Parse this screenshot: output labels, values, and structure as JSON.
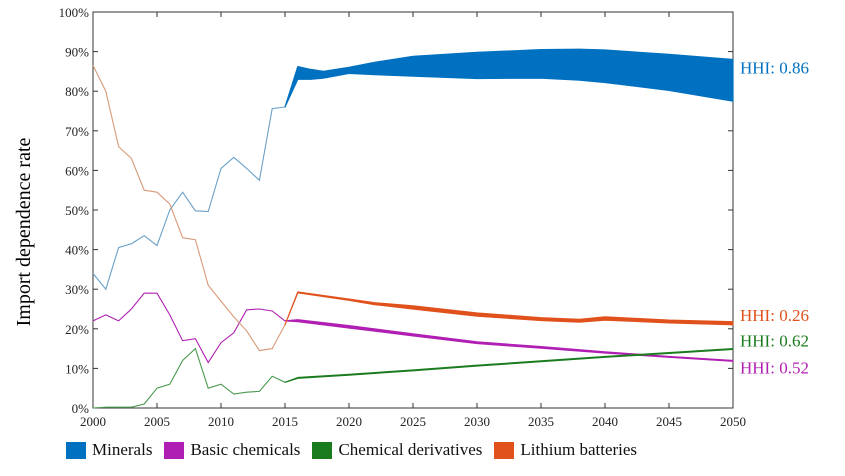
{
  "chart_data": {
    "type": "line",
    "ylabel": "Import dependence rate",
    "xlabel": "",
    "xlim": [
      2000,
      2050
    ],
    "ylim": [
      0,
      100
    ],
    "x_ticks": [
      2000,
      2005,
      2010,
      2015,
      2020,
      2025,
      2030,
      2035,
      2040,
      2045,
      2050
    ],
    "y_ticks": [
      "0%",
      "10%",
      "20%",
      "30%",
      "40%",
      "50%",
      "60%",
      "70%",
      "80%",
      "90%",
      "100%"
    ],
    "legend_position": "bottom",
    "series": [
      {
        "name": "Minerals",
        "color": "#0070c0",
        "hhi_label": "HHI: 0.86",
        "historical": {
          "x": [
            2000,
            2001,
            2002,
            2003,
            2004,
            2005,
            2006,
            2007,
            2008,
            2009,
            2010,
            2011,
            2012,
            2013,
            2014,
            2015
          ],
          "y": [
            34,
            30,
            40.5,
            41.5,
            43.5,
            41,
            50,
            54.5,
            49.8,
            49.6,
            60.5,
            63.3,
            60.5,
            57.5,
            75.6,
            76
          ]
        },
        "projection": {
          "x": [
            2015,
            2016,
            2017,
            2018,
            2020,
            2022,
            2025,
            2030,
            2035,
            2038,
            2040,
            2045,
            2050
          ],
          "upper": [
            76,
            86.2,
            85.5,
            85,
            86,
            87.3,
            88.8,
            89.8,
            90.5,
            90.6,
            90.4,
            89.3,
            88
          ],
          "lower": [
            76,
            83,
            83,
            83.3,
            84.5,
            84.2,
            83.8,
            83.2,
            83.3,
            82.8,
            82.2,
            80.2,
            77.5
          ]
        }
      },
      {
        "name": "Basic chemicals",
        "color": "#b01fb3",
        "hhi_label": "HHI: 0.52",
        "historical": {
          "x": [
            2000,
            2001,
            2002,
            2003,
            2004,
            2005,
            2006,
            2007,
            2008,
            2009,
            2010,
            2011,
            2012,
            2013,
            2014,
            2015
          ],
          "y": [
            22,
            23.5,
            22,
            25,
            29,
            29,
            23.5,
            17,
            17.5,
            11.5,
            16.5,
            19,
            24.8,
            25,
            24.5,
            22
          ]
        },
        "projection": {
          "x": [
            2015,
            2016,
            2020,
            2025,
            2030,
            2035,
            2040,
            2045,
            2050
          ],
          "upper": [
            22,
            22.3,
            20.8,
            18.7,
            16.7,
            15.5,
            14.2,
            13,
            12
          ],
          "lower": [
            22,
            21.8,
            20.2,
            18.2,
            16.3,
            15.1,
            13.9,
            12.8,
            11.8
          ]
        }
      },
      {
        "name": "Chemical derivatives",
        "color": "#1b7c1f",
        "hhi_label": "HHI: 0.62",
        "historical": {
          "x": [
            2000,
            2001,
            2002,
            2003,
            2004,
            2005,
            2006,
            2007,
            2008,
            2009,
            2010,
            2011,
            2012,
            2013,
            2014,
            2015
          ],
          "y": [
            0,
            0.2,
            0.2,
            0.2,
            1,
            5,
            6,
            12,
            15,
            5,
            6,
            3.5,
            4,
            4.2,
            8,
            6.5
          ]
        },
        "projection": {
          "x": [
            2015,
            2016,
            2020,
            2025,
            2030,
            2035,
            2040,
            2045,
            2050
          ],
          "upper": [
            6.5,
            7.7,
            8.5,
            9.6,
            10.8,
            11.9,
            13,
            14,
            15
          ],
          "lower": [
            6.5,
            7.5,
            8.3,
            9.4,
            10.6,
            11.7,
            12.8,
            13.8,
            14.8
          ]
        }
      },
      {
        "name": "Lithium batteries",
        "color": "#e0511c",
        "hhi_label": "HHI: 0.26",
        "historical": {
          "x": [
            2000,
            2001,
            2002,
            2003,
            2004,
            2005,
            2006,
            2007,
            2008,
            2009,
            2010,
            2011,
            2012,
            2013,
            2014,
            2015
          ],
          "y": [
            86.5,
            80,
            66,
            63,
            55,
            54.5,
            51.5,
            43,
            42.5,
            31,
            27,
            23,
            19.5,
            14.5,
            15,
            21
          ]
        },
        "projection": {
          "x": [
            2015,
            2016,
            2020,
            2022,
            2025,
            2030,
            2035,
            2038,
            2040,
            2045,
            2050
          ],
          "upper": [
            21,
            29.3,
            27.5,
            26.6,
            25.8,
            24,
            22.8,
            22.4,
            23,
            22.2,
            21.8
          ],
          "lower": [
            21,
            29.1,
            27.2,
            26.1,
            25,
            23.2,
            22.1,
            21.7,
            22.2,
            21.5,
            21
          ]
        }
      }
    ]
  }
}
